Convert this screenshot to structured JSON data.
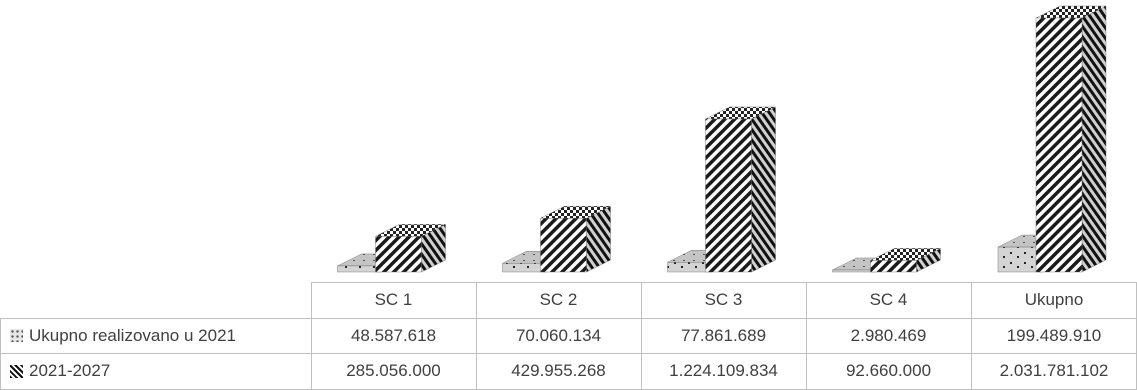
{
  "chart_data": {
    "type": "bar",
    "categories": [
      "SC 1",
      "SC 2",
      "SC 3",
      "SC 4",
      "Ukupno"
    ],
    "series": [
      {
        "name": "Ukupno realizovano u 2021",
        "values": [
          48587618,
          70060134,
          77861689,
          2980469,
          199489910
        ]
      },
      {
        "name": "2021-2027",
        "values": [
          285056000,
          429955268,
          1224109834,
          92660000,
          2031781102
        ]
      }
    ],
    "table": {
      "header": [
        "",
        "SC 1",
        "SC 2",
        "SC 3",
        "SC 4",
        "Ukupno"
      ],
      "rows": [
        {
          "label": "Ukupno realizovano u 2021",
          "cells": [
            "48.587.618",
            "70.060.134",
            "77.861.689",
            "2.980.469",
            "199.489.910"
          ]
        },
        {
          "label": "2021-2027",
          "cells": [
            "285.056.000",
            "429.955.268",
            "1.224.109.834",
            "92.660.000",
            "2.031.781.102"
          ]
        }
      ]
    },
    "title": "",
    "xlabel": "",
    "ylabel": "",
    "three_d": true,
    "grid": false,
    "legend": "data table"
  }
}
